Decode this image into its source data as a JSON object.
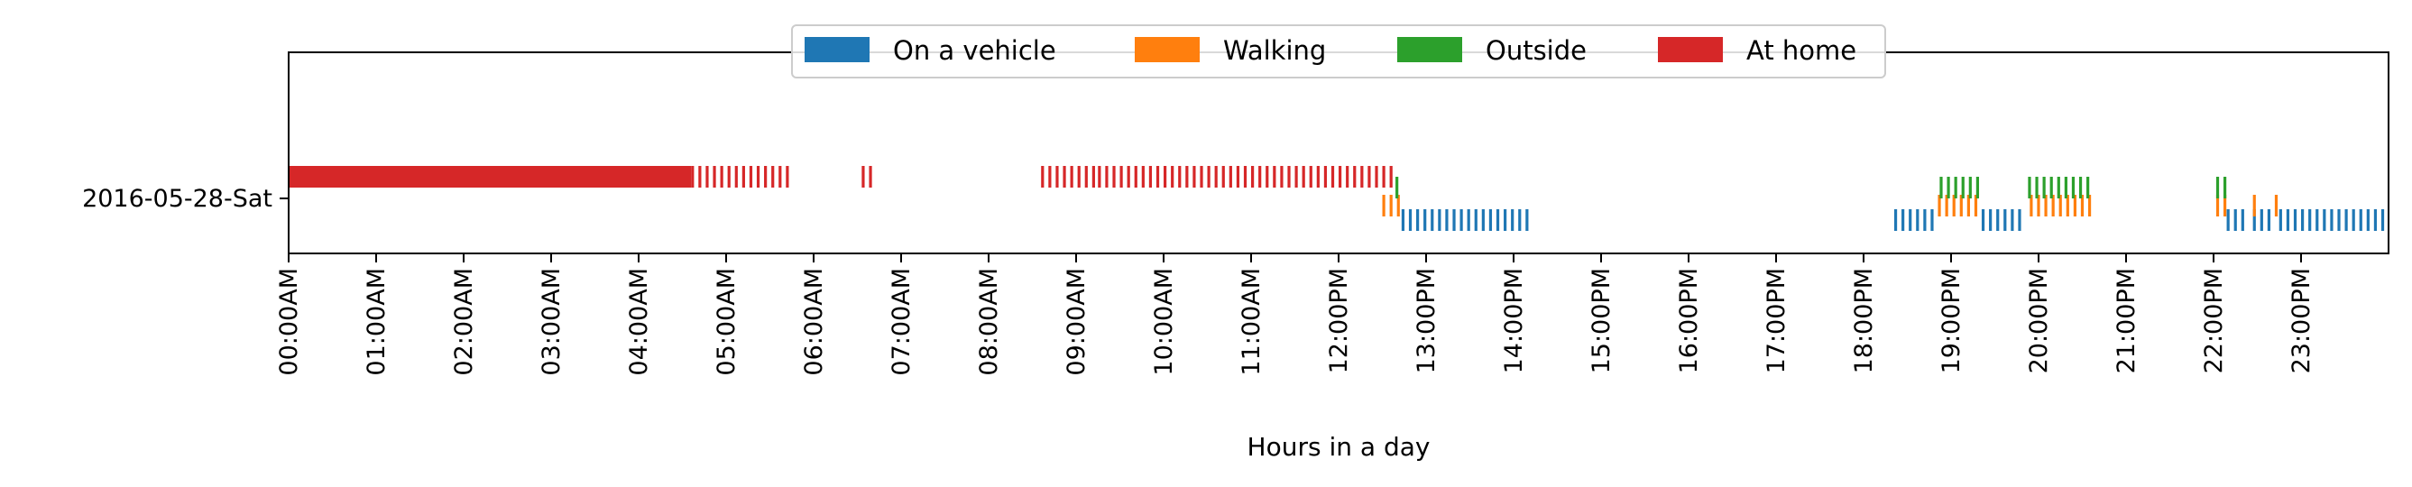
{
  "chart_data": {
    "type": "timeline",
    "title": "",
    "xlabel": "Hours in a day",
    "ylabel": "",
    "y_categories": [
      "2016-05-28-Sat"
    ],
    "x_range_hours": [
      0,
      24
    ],
    "x_ticks": [
      "00:00AM",
      "01:00AM",
      "02:00AM",
      "03:00AM",
      "04:00AM",
      "05:00AM",
      "06:00AM",
      "07:00AM",
      "08:00AM",
      "09:00AM",
      "10:00AM",
      "11:00AM",
      "12:00PM",
      "13:00PM",
      "14:00PM",
      "15:00PM",
      "16:00PM",
      "17:00PM",
      "18:00PM",
      "19:00PM",
      "20:00PM",
      "21:00PM",
      "22:00PM",
      "23:00PM"
    ],
    "legend_position": "top-center",
    "grid": false,
    "series": [
      {
        "name": "On a vehicle",
        "color": "#1f77b4",
        "solid_intervals": [],
        "sample_intervals": [
          [
            12.72,
            14.18
          ],
          [
            18.35,
            18.85
          ],
          [
            19.35,
            19.85
          ],
          [
            22.15,
            22.38
          ],
          [
            22.45,
            22.62
          ],
          [
            22.75,
            24.0
          ]
        ]
      },
      {
        "name": "Walking",
        "color": "#ff7f0e",
        "solid_intervals": [],
        "sample_intervals": [
          [
            12.5,
            12.7
          ],
          [
            18.85,
            19.3
          ],
          [
            19.9,
            20.62
          ],
          [
            22.03,
            22.13
          ],
          [
            22.45,
            22.52
          ],
          [
            22.7,
            22.77
          ]
        ]
      },
      {
        "name": "Outside",
        "color": "#2ca02c",
        "solid_intervals": [],
        "sample_intervals": [
          [
            12.65,
            12.7
          ],
          [
            18.87,
            19.33
          ],
          [
            19.88,
            20.62
          ],
          [
            22.03,
            22.15
          ]
        ]
      },
      {
        "name": "At home",
        "color": "#d62728",
        "solid_intervals": [
          [
            0.0,
            4.6
          ]
        ],
        "sample_intervals": [
          [
            4.6,
            5.7
          ],
          [
            6.55,
            6.65
          ],
          [
            8.6,
            9.25
          ],
          [
            9.25,
            12.6
          ]
        ]
      }
    ]
  }
}
